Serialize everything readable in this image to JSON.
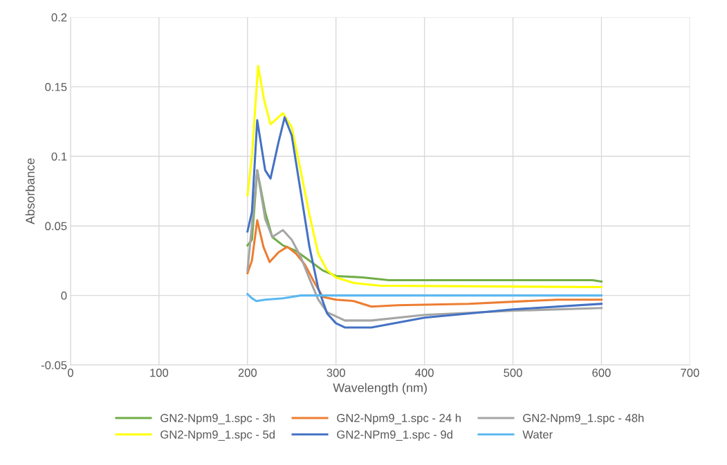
{
  "chart_data": {
    "type": "line",
    "xlabel": "Wavelength (nm)",
    "ylabel": "Absorbance",
    "xlim": [
      0,
      700
    ],
    "xticks": [
      0,
      100,
      200,
      300,
      400,
      500,
      600,
      700
    ],
    "ylim": [
      -0.05,
      0.2
    ],
    "yticks": [
      -0.05,
      0,
      0.05,
      0.1,
      0.15,
      0.2
    ],
    "grid": true,
    "legend": "bottom",
    "marker": "none",
    "line_style": "solid",
    "series": [
      {
        "name": "GN2-Npm9_1.spc - 3h",
        "color": "#70ad47",
        "x": [
          200,
          205,
          211,
          220,
          228,
          240,
          255,
          270,
          285,
          300,
          330,
          360,
          590,
          600
        ],
        "values": [
          0.036,
          0.04,
          0.09,
          0.06,
          0.042,
          0.036,
          0.032,
          0.025,
          0.018,
          0.014,
          0.013,
          0.011,
          0.011,
          0.01
        ]
      },
      {
        "name": "GN2-Npm9_1.spc - 24 h",
        "color": "#ed7d31",
        "x": [
          200,
          205,
          211,
          218,
          225,
          235,
          245,
          255,
          265,
          275,
          285,
          300,
          320,
          340,
          370,
          450,
          550,
          600
        ],
        "values": [
          0.016,
          0.025,
          0.054,
          0.035,
          0.024,
          0.031,
          0.035,
          0.03,
          0.022,
          0.01,
          -0.001,
          -0.003,
          -0.004,
          -0.008,
          -0.007,
          -0.006,
          -0.003,
          -0.003
        ]
      },
      {
        "name": "GN2-Npm9_1.spc - 48h",
        "color": "#a5a5a5",
        "x": [
          200,
          211,
          220,
          228,
          240,
          250,
          260,
          270,
          280,
          290,
          310,
          340,
          400,
          500,
          600
        ],
        "values": [
          0.018,
          0.09,
          0.055,
          0.042,
          0.047,
          0.04,
          0.028,
          0.012,
          -0.003,
          -0.012,
          -0.018,
          -0.018,
          -0.014,
          -0.011,
          -0.009
        ]
      },
      {
        "name": "GN2-Npm9_1.spc - 5d",
        "color": "#ffff00",
        "x": [
          200,
          205,
          212,
          219,
          226,
          233,
          240,
          250,
          260,
          270,
          280,
          290,
          300,
          320,
          350,
          600
        ],
        "values": [
          0.072,
          0.1,
          0.165,
          0.14,
          0.123,
          0.127,
          0.131,
          0.121,
          0.09,
          0.058,
          0.03,
          0.018,
          0.013,
          0.009,
          0.007,
          0.006
        ]
      },
      {
        "name": "GN2-NPm9_1.spc - 9d",
        "color": "#4472c4",
        "x": [
          200,
          205,
          211,
          220,
          226,
          235,
          242,
          250,
          260,
          270,
          280,
          290,
          300,
          310,
          340,
          400,
          500,
          600
        ],
        "values": [
          0.046,
          0.06,
          0.126,
          0.09,
          0.084,
          0.11,
          0.128,
          0.115,
          0.075,
          0.035,
          0.005,
          -0.013,
          -0.02,
          -0.023,
          -0.023,
          -0.016,
          -0.01,
          -0.006
        ]
      },
      {
        "name": "Water",
        "color": "#5bb8f0",
        "x": [
          200,
          205,
          210,
          220,
          240,
          260,
          600
        ],
        "values": [
          0.001,
          -0.002,
          -0.004,
          -0.003,
          -0.002,
          0.0,
          0.0
        ]
      }
    ]
  }
}
